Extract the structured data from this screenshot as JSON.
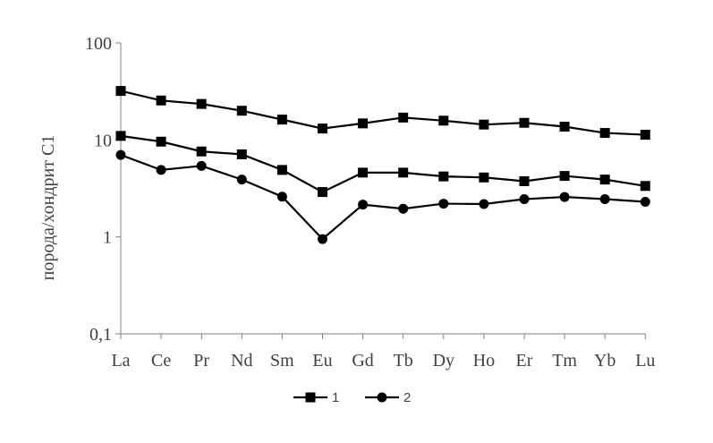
{
  "chart_data": {
    "type": "line",
    "categories": [
      "La",
      "Ce",
      "Pr",
      "Nd",
      "Sm",
      "Eu",
      "Gd",
      "Tb",
      "Dy",
      "Ho",
      "Er",
      "Tm",
      "Yb",
      "Lu"
    ],
    "ylabel": "порода/хондрит С1",
    "xlabel": "",
    "title": "",
    "y_scale": "log",
    "ylim": [
      0.1,
      100
    ],
    "y_ticks": [
      "0,1",
      "1",
      "10",
      "100"
    ],
    "grid": false,
    "legend_position": "bottom",
    "series": [
      {
        "name": "1",
        "marker": "square",
        "values": [
          32,
          25.5,
          23.5,
          20,
          16.2,
          13.1,
          14.8,
          17.0,
          15.8,
          14.4,
          15.0,
          13.7,
          11.8,
          11.3
        ]
      },
      {
        "name": "1",
        "marker": "square",
        "values": [
          11.0,
          9.6,
          7.6,
          7.1,
          4.9,
          2.9,
          4.6,
          4.6,
          4.2,
          4.1,
          3.75,
          4.25,
          3.9,
          3.35
        ]
      },
      {
        "name": "2",
        "marker": "circle",
        "values": [
          7.0,
          4.9,
          5.4,
          3.9,
          2.6,
          0.95,
          2.15,
          1.95,
          2.2,
          2.18,
          2.45,
          2.58,
          2.45,
          2.3
        ]
      }
    ],
    "colors": {
      "line": "#000000",
      "axis": "#808080",
      "text": "#404040"
    }
  }
}
